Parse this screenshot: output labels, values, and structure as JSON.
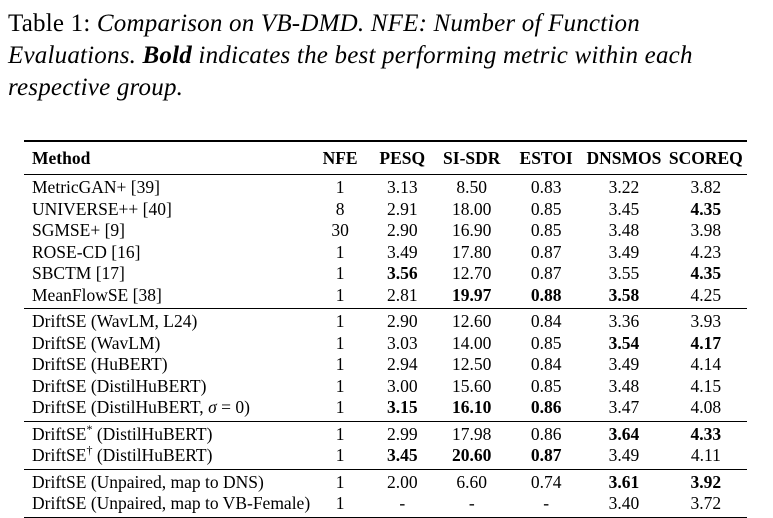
{
  "caption": {
    "label": "Table 1:",
    "body_before_bold": " Comparison on VB-DMD. NFE: Number of Function Evaluations. ",
    "bold_word": "Bold",
    "body_after_bold": " indicates the best performing metric within each respective group."
  },
  "colors": {
    "text": "#000000",
    "background": "#ffffff",
    "rule": "#000000"
  },
  "table": {
    "columns": [
      "Method",
      "NFE",
      "PESQ",
      "SI-SDR",
      "ESTOI",
      "DNSMOS",
      "SCOREQ"
    ],
    "groups": [
      {
        "rows": [
          {
            "method": [
              {
                "t": "MetricGAN+ [39]"
              }
            ],
            "cells": [
              {
                "v": "1"
              },
              {
                "v": "3.13"
              },
              {
                "v": "8.50"
              },
              {
                "v": "0.83"
              },
              {
                "v": "3.22"
              },
              {
                "v": "3.82"
              }
            ]
          },
          {
            "method": [
              {
                "t": "UNIVERSE++ [40]"
              }
            ],
            "cells": [
              {
                "v": "8"
              },
              {
                "v": "2.91"
              },
              {
                "v": "18.00"
              },
              {
                "v": "0.85"
              },
              {
                "v": "3.45"
              },
              {
                "v": "4.35",
                "b": true
              }
            ]
          },
          {
            "method": [
              {
                "t": "SGMSE+ [9]"
              }
            ],
            "cells": [
              {
                "v": "30"
              },
              {
                "v": "2.90"
              },
              {
                "v": "16.90"
              },
              {
                "v": "0.85"
              },
              {
                "v": "3.48"
              },
              {
                "v": "3.98"
              }
            ]
          },
          {
            "method": [
              {
                "t": "ROSE-CD [16]"
              }
            ],
            "cells": [
              {
                "v": "1"
              },
              {
                "v": "3.49"
              },
              {
                "v": "17.80"
              },
              {
                "v": "0.87"
              },
              {
                "v": "3.49"
              },
              {
                "v": "4.23"
              }
            ]
          },
          {
            "method": [
              {
                "t": "SBCTM [17]"
              }
            ],
            "cells": [
              {
                "v": "1"
              },
              {
                "v": "3.56",
                "b": true
              },
              {
                "v": "12.70"
              },
              {
                "v": "0.87"
              },
              {
                "v": "3.55"
              },
              {
                "v": "4.35",
                "b": true
              }
            ]
          },
          {
            "method": [
              {
                "t": "MeanFlowSE [38]"
              }
            ],
            "cells": [
              {
                "v": "1"
              },
              {
                "v": "2.81"
              },
              {
                "v": "19.97",
                "b": true
              },
              {
                "v": "0.88",
                "b": true
              },
              {
                "v": "3.58",
                "b": true
              },
              {
                "v": "4.25"
              }
            ]
          }
        ]
      },
      {
        "rows": [
          {
            "method": [
              {
                "t": "DriftSE (WavLM, L24)"
              }
            ],
            "cells": [
              {
                "v": "1"
              },
              {
                "v": "2.90"
              },
              {
                "v": "12.60"
              },
              {
                "v": "0.84"
              },
              {
                "v": "3.36"
              },
              {
                "v": "3.93"
              }
            ]
          },
          {
            "method": [
              {
                "t": "DriftSE (WavLM)"
              }
            ],
            "cells": [
              {
                "v": "1"
              },
              {
                "v": "3.03"
              },
              {
                "v": "14.00"
              },
              {
                "v": "0.85"
              },
              {
                "v": "3.54",
                "b": true
              },
              {
                "v": "4.17",
                "b": true
              }
            ]
          },
          {
            "method": [
              {
                "t": "DriftSE (HuBERT)"
              }
            ],
            "cells": [
              {
                "v": "1"
              },
              {
                "v": "2.94"
              },
              {
                "v": "12.50"
              },
              {
                "v": "0.84"
              },
              {
                "v": "3.49"
              },
              {
                "v": "4.14"
              }
            ]
          },
          {
            "method": [
              {
                "t": "DriftSE (DistilHuBERT)"
              }
            ],
            "cells": [
              {
                "v": "1"
              },
              {
                "v": "3.00"
              },
              {
                "v": "15.60"
              },
              {
                "v": "0.85"
              },
              {
                "v": "3.48"
              },
              {
                "v": "4.15"
              }
            ]
          },
          {
            "method": [
              {
                "t": "DriftSE (DistilHuBERT, "
              },
              {
                "t": "σ",
                "i": true
              },
              {
                "t": " = 0)"
              }
            ],
            "cells": [
              {
                "v": "1"
              },
              {
                "v": "3.15",
                "b": true
              },
              {
                "v": "16.10",
                "b": true
              },
              {
                "v": "0.86",
                "b": true
              },
              {
                "v": "3.47"
              },
              {
                "v": "4.08"
              }
            ]
          }
        ]
      },
      {
        "rows": [
          {
            "method": [
              {
                "t": "DriftSE"
              },
              {
                "t": "*",
                "sup": true
              },
              {
                "t": " (DistilHuBERT)"
              }
            ],
            "cells": [
              {
                "v": "1"
              },
              {
                "v": "2.99"
              },
              {
                "v": "17.98"
              },
              {
                "v": "0.86"
              },
              {
                "v": "3.64",
                "b": true
              },
              {
                "v": "4.33",
                "b": true
              }
            ]
          },
          {
            "method": [
              {
                "t": "DriftSE"
              },
              {
                "t": "†",
                "sup": true
              },
              {
                "t": " (DistilHuBERT)"
              }
            ],
            "cells": [
              {
                "v": "1"
              },
              {
                "v": "3.45",
                "b": true
              },
              {
                "v": "20.60",
                "b": true
              },
              {
                "v": "0.87",
                "b": true
              },
              {
                "v": "3.49"
              },
              {
                "v": "4.11"
              }
            ]
          }
        ]
      },
      {
        "rows": [
          {
            "method": [
              {
                "t": "DriftSE (Unpaired, map to DNS)"
              }
            ],
            "cells": [
              {
                "v": "1"
              },
              {
                "v": "2.00"
              },
              {
                "v": "6.60"
              },
              {
                "v": "0.74"
              },
              {
                "v": "3.61",
                "b": true
              },
              {
                "v": "3.92",
                "b": true
              }
            ]
          },
          {
            "method": [
              {
                "t": "DriftSE (Unpaired, map to VB-Female)"
              }
            ],
            "cells": [
              {
                "v": "1"
              },
              {
                "v": "-"
              },
              {
                "v": "-"
              },
              {
                "v": "-"
              },
              {
                "v": "3.40"
              },
              {
                "v": "3.72"
              }
            ]
          }
        ]
      }
    ]
  }
}
